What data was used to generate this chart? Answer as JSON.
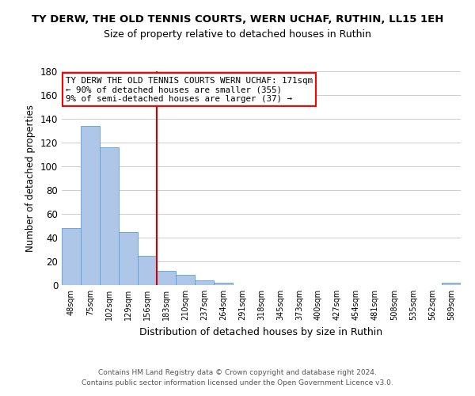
{
  "title": "TY DERW, THE OLD TENNIS COURTS, WERN UCHAF, RUTHIN, LL15 1EH",
  "subtitle": "Size of property relative to detached houses in Ruthin",
  "xlabel": "Distribution of detached houses by size in Ruthin",
  "ylabel": "Number of detached properties",
  "bar_labels": [
    "48sqm",
    "75sqm",
    "102sqm",
    "129sqm",
    "156sqm",
    "183sqm",
    "210sqm",
    "237sqm",
    "264sqm",
    "291sqm",
    "318sqm",
    "345sqm",
    "373sqm",
    "400sqm",
    "427sqm",
    "454sqm",
    "481sqm",
    "508sqm",
    "535sqm",
    "562sqm",
    "589sqm"
  ],
  "bar_values": [
    48,
    134,
    116,
    45,
    25,
    12,
    9,
    4,
    2,
    0,
    0,
    0,
    0,
    0,
    0,
    0,
    0,
    0,
    0,
    0,
    2
  ],
  "bar_color": "#aec6e8",
  "bar_edge_color": "#5a9fd4",
  "vline_x": 4.5,
  "vline_color": "#cc0000",
  "ylim": [
    0,
    180
  ],
  "yticks": [
    0,
    20,
    40,
    60,
    80,
    100,
    120,
    140,
    160,
    180
  ],
  "annotation_line1": "TY DERW THE OLD TENNIS COURTS WERN UCHAF: 171sqm",
  "annotation_line2": "← 90% of detached houses are smaller (355)",
  "annotation_line3": "9% of semi-detached houses are larger (37) →",
  "footer_line1": "Contains HM Land Registry data © Crown copyright and database right 2024.",
  "footer_line2": "Contains public sector information licensed under the Open Government Licence v3.0.",
  "background_color": "#ffffff",
  "grid_color": "#cccccc"
}
